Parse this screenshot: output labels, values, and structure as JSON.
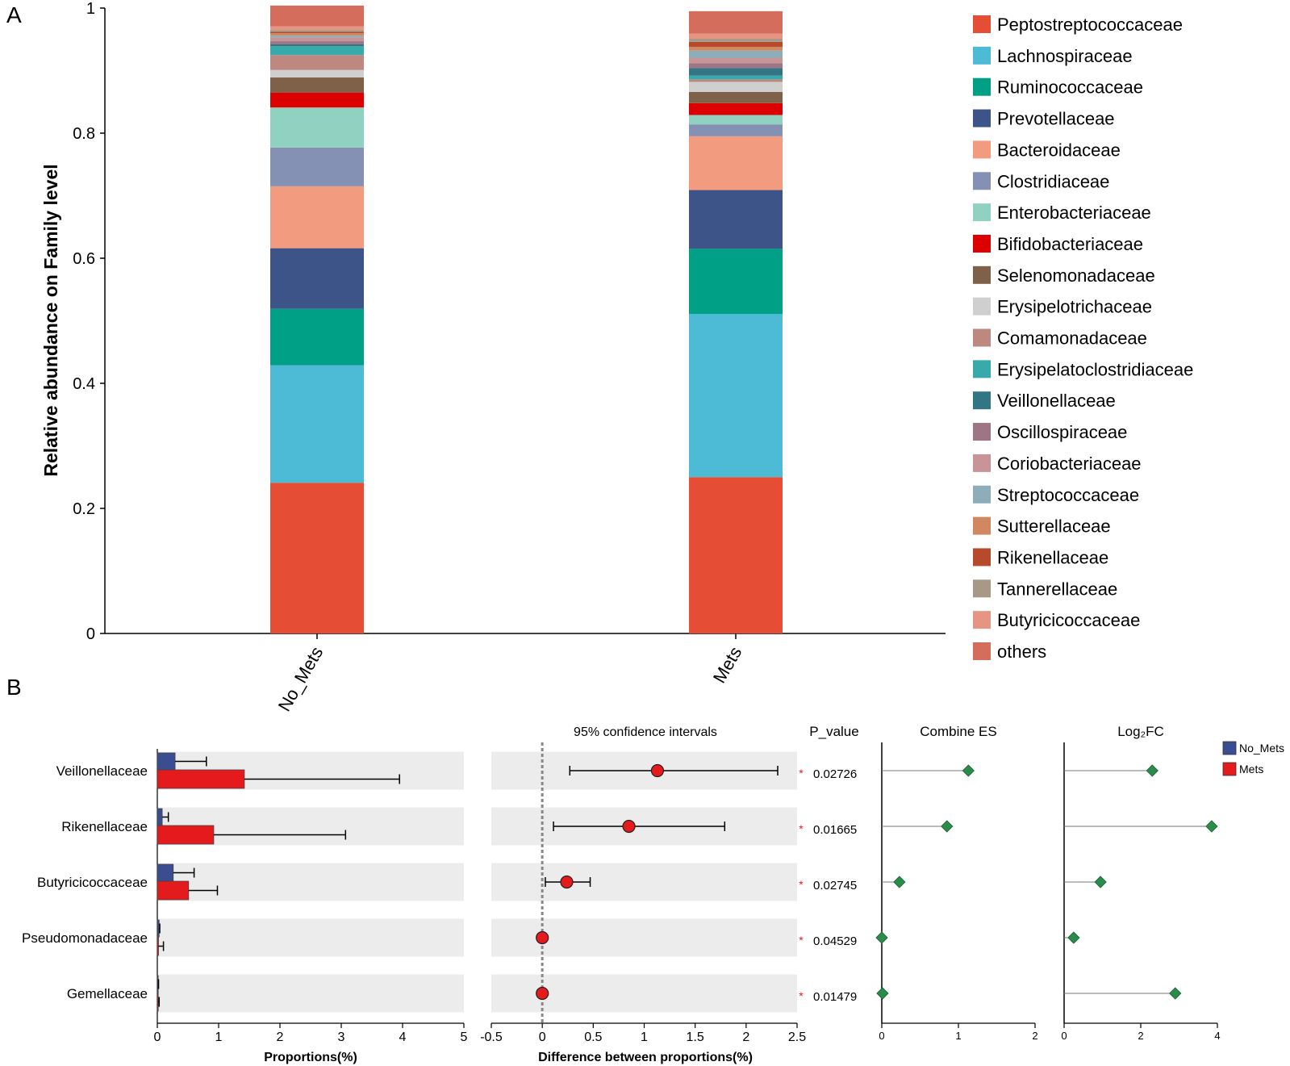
{
  "panel_labels": {
    "a": "A",
    "b": "B"
  },
  "colors": {
    "no_mets": "#3b4d91",
    "mets": "#e41a1c",
    "point": "#e41a1c",
    "diamond": "#2a8c4a",
    "panel_bg": "#ececec",
    "asterisk": "#e41a1c"
  },
  "chart_data": [
    {
      "type": "bar",
      "subtype": "stacked-100",
      "ylabel": "Relative abundance on Family level",
      "ylim": [
        0,
        1
      ],
      "yticks": [
        "0",
        "0.2",
        "0.4",
        "0.6",
        "0.8",
        "1"
      ],
      "categories": [
        "No_Mets",
        "Mets"
      ],
      "series": [
        {
          "name": "Peptostreptococcaceae",
          "color": "#e64d35",
          "values": [
            0.241,
            0.25
          ]
        },
        {
          "name": "Lachnospiraceae",
          "color": "#4dbad6",
          "values": [
            0.188,
            0.261
          ]
        },
        {
          "name": "Ruminococcaceae",
          "color": "#00a087",
          "values": [
            0.09,
            0.104
          ]
        },
        {
          "name": "Prevotellaceae",
          "color": "#3c5487",
          "values": [
            0.097,
            0.094
          ]
        },
        {
          "name": "Bacteroidaceae",
          "color": "#f29b7f",
          "values": [
            0.099,
            0.086
          ]
        },
        {
          "name": "Clostridiaceae",
          "color": "#8591b4",
          "values": [
            0.062,
            0.019
          ]
        },
        {
          "name": "Enterobacteriaceae",
          "color": "#91d1c2",
          "values": [
            0.064,
            0.015
          ]
        },
        {
          "name": "Bifidobacteriaceae",
          "color": "#dc0000",
          "values": [
            0.024,
            0.019
          ]
        },
        {
          "name": "Selenomonadaceae",
          "color": "#7e6148",
          "values": [
            0.024,
            0.018
          ]
        },
        {
          "name": "Erysipelotrichaceae",
          "color": "#cfcfcf",
          "values": [
            0.012,
            0.016
          ]
        },
        {
          "name": "Comamonadaceae",
          "color": "#bd8880",
          "values": [
            0.024,
            0.004
          ]
        },
        {
          "name": "Erysipelatoclostridiaceae",
          "color": "#38aaab",
          "values": [
            0.014,
            0.006
          ]
        },
        {
          "name": "Veillonellaceae",
          "color": "#327585",
          "values": [
            0.003,
            0.012
          ]
        },
        {
          "name": "Oscillospiraceae",
          "color": "#9e7584",
          "values": [
            0.005,
            0.008
          ]
        },
        {
          "name": "Coriobacteriaceae",
          "color": "#c99498",
          "values": [
            0.006,
            0.008
          ]
        },
        {
          "name": "Streptococcaceae",
          "color": "#8cadb9",
          "values": [
            0.003,
            0.012
          ]
        },
        {
          "name": "Sutterellaceae",
          "color": "#d1875f",
          "values": [
            0.004,
            0.006
          ]
        },
        {
          "name": "Rikenellaceae",
          "color": "#b64a2b",
          "values": [
            0.002,
            0.008
          ]
        },
        {
          "name": "Tannerellaceae",
          "color": "#a89888",
          "values": [
            0.003,
            0.005
          ]
        },
        {
          "name": "Butyricicoccaceae",
          "color": "#e69582",
          "values": [
            0.006,
            0.008
          ]
        },
        {
          "name": "others",
          "color": "#d56d5c",
          "values": [
            0.033,
            0.036
          ]
        }
      ]
    },
    {
      "type": "bar",
      "subtype": "horizontal-grouped",
      "xlabel": "Proportions(%)",
      "xlim": [
        0,
        5
      ],
      "xticks": [
        "0",
        "1",
        "2",
        "3",
        "4",
        "5"
      ],
      "categories": [
        "Veillonellaceae",
        "Rikenellaceae",
        "Butyricicoccaceae",
        "Pseudomonadaceae",
        "Gemellaceae"
      ],
      "series": [
        {
          "name": "No_Mets",
          "values": [
            0.29,
            0.08,
            0.26,
            0.03,
            0.015
          ],
          "err_upper": [
            0.8,
            0.18,
            0.6,
            0.04,
            0.02
          ]
        },
        {
          "name": "Mets",
          "values": [
            1.42,
            0.92,
            0.51,
            0.02,
            0.015
          ],
          "err_upper": [
            3.95,
            3.07,
            0.98,
            0.1,
            0.03
          ]
        }
      ]
    },
    {
      "type": "scatter",
      "subtype": "confidence-interval",
      "title": "95% confidence intervals",
      "xlabel": "Difference between proportions(%)",
      "xlim": [
        -0.5,
        2.5
      ],
      "xticks": [
        "-0.5",
        "0",
        "0.5",
        "1",
        "1.5",
        "2",
        "2.5"
      ],
      "categories": [
        "Veillonellaceae",
        "Rikenellaceae",
        "Butyricicoccaceae",
        "Pseudomonadaceae",
        "Gemellaceae"
      ],
      "values": [
        1.13,
        0.85,
        0.24,
        0.0,
        0.0
      ],
      "ci_low": [
        0.27,
        0.11,
        0.03,
        0.0,
        0.0
      ],
      "ci_high": [
        2.31,
        1.79,
        0.47,
        0.0,
        0.0
      ],
      "p_value_header": "P_value",
      "p_values": [
        "0.02726",
        "0.01665",
        "0.02745",
        "0.04529",
        "0.01479"
      ],
      "significance": [
        "*",
        "*",
        "*",
        "*",
        "*"
      ]
    },
    {
      "type": "scatter",
      "subtype": "lollipop",
      "title": "Combine ES",
      "xlim": [
        0,
        2
      ],
      "xticks": [
        "0",
        "1",
        "2"
      ],
      "categories": [
        "Veillonellaceae",
        "Rikenellaceae",
        "Butyricicoccaceae",
        "Pseudomonadaceae",
        "Gemellaceae"
      ],
      "values": [
        1.13,
        0.85,
        0.23,
        0.0,
        0.01
      ]
    },
    {
      "type": "scatter",
      "subtype": "lollipop",
      "title": "Log₂FC",
      "xlim": [
        0,
        4
      ],
      "xticks": [
        "0",
        "2",
        "4"
      ],
      "categories": [
        "Veillonellaceae",
        "Rikenellaceae",
        "Butyricicoccaceae",
        "Pseudomonadaceae",
        "Gemellaceae"
      ],
      "values": [
        2.3,
        3.85,
        0.95,
        0.25,
        2.9
      ]
    }
  ],
  "legend_b": [
    {
      "name": "No_Mets",
      "color": "#3b4d91"
    },
    {
      "name": "Mets",
      "color": "#e41a1c"
    }
  ]
}
